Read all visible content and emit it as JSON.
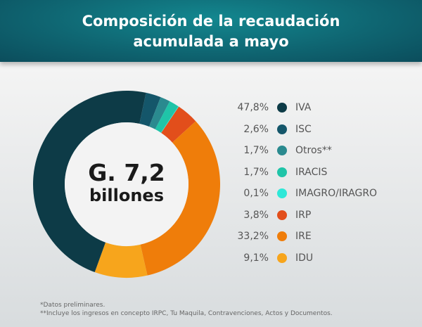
{
  "title_line1": "Composición de la recaudación",
  "title_line2": "acumulada a mayo",
  "center": {
    "amount": "G. 7,2",
    "unit": "billones"
  },
  "chart_data": {
    "type": "pie",
    "title": "Composición de la recaudación acumulada a mayo",
    "categories": [
      "IVA",
      "ISC",
      "Otros**",
      "IRACIS",
      "IMAGRO/IRAGRO",
      "IRP",
      "IRE",
      "IDU"
    ],
    "values": [
      47.8,
      2.6,
      1.7,
      1.7,
      0.1,
      3.8,
      33.2,
      9.1
    ],
    "labels": [
      "47,8%",
      "2,6%",
      "1,7%",
      "1,7%",
      "0,1%",
      "3,8%",
      "33,2%",
      "9,1%"
    ],
    "colors": [
      "#0d3b47",
      "#14566a",
      "#2a8a8f",
      "#1fc4a8",
      "#2ee8d8",
      "#e24e1b",
      "#ef7d0a",
      "#f7a51c"
    ],
    "legend": "right",
    "donut": true
  },
  "footnotes": [
    "*Datos preliminares.",
    "**Incluye los ingresos en concepto IRPC, Tu Maquila, Contravenciones, Actos y Documentos."
  ]
}
